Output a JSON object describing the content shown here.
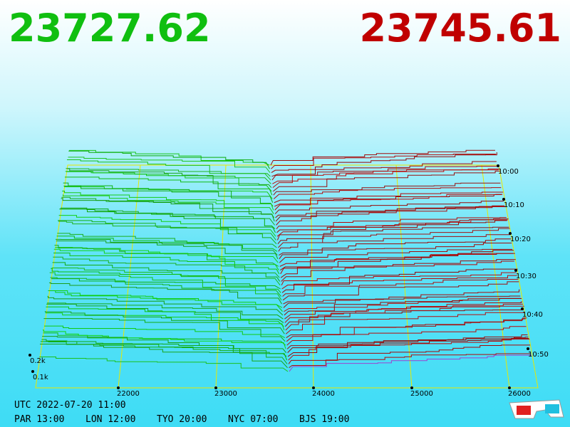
{
  "header": {
    "bid": "23727.62",
    "ask": "23745.61"
  },
  "price_axis": {
    "labels": [
      "22000",
      "23000",
      "24000",
      "25000",
      "26000"
    ]
  },
  "depth_axis": {
    "labels": [
      "0.2k",
      "0.1k"
    ]
  },
  "time_axis": {
    "labels": [
      "10:00",
      "10:10",
      "10:20",
      "10:30",
      "10:40",
      "10:50"
    ]
  },
  "footer": {
    "utc": "UTC 2022-07-20 11:00",
    "zones": [
      "PAR 13:00",
      "LON 12:00",
      "TYO 20:00",
      "NYC 07:00",
      "BJS 19:00"
    ]
  }
}
